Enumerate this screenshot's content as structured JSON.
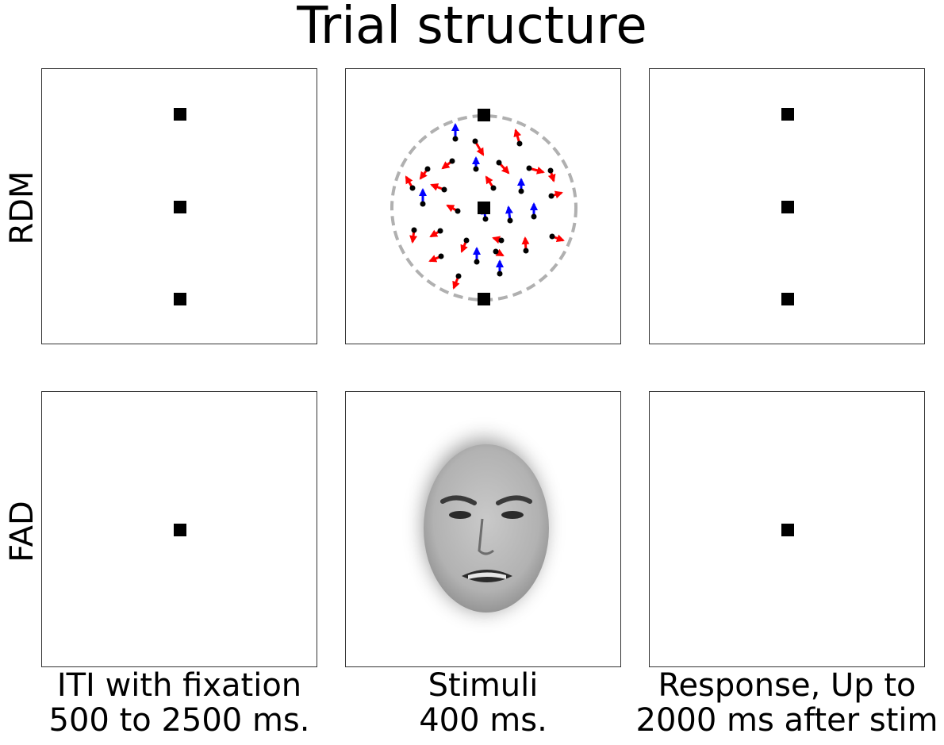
{
  "title": "Trial structure",
  "rows": [
    {
      "label": "RDM"
    },
    {
      "label": "FAD"
    }
  ],
  "columns": [
    {
      "line1": "ITI with fixation",
      "line2": "500 to 2500 ms."
    },
    {
      "line1": "Stimuli",
      "line2": "400 ms."
    },
    {
      "line1": "Response, Up to",
      "line2": "2000 ms after stim"
    }
  ],
  "colors": {
    "coherent_arrow": "#0000ff",
    "random_arrow": "#ff0000",
    "aperture": "#b0b0b0",
    "fixation": "#000000"
  }
}
